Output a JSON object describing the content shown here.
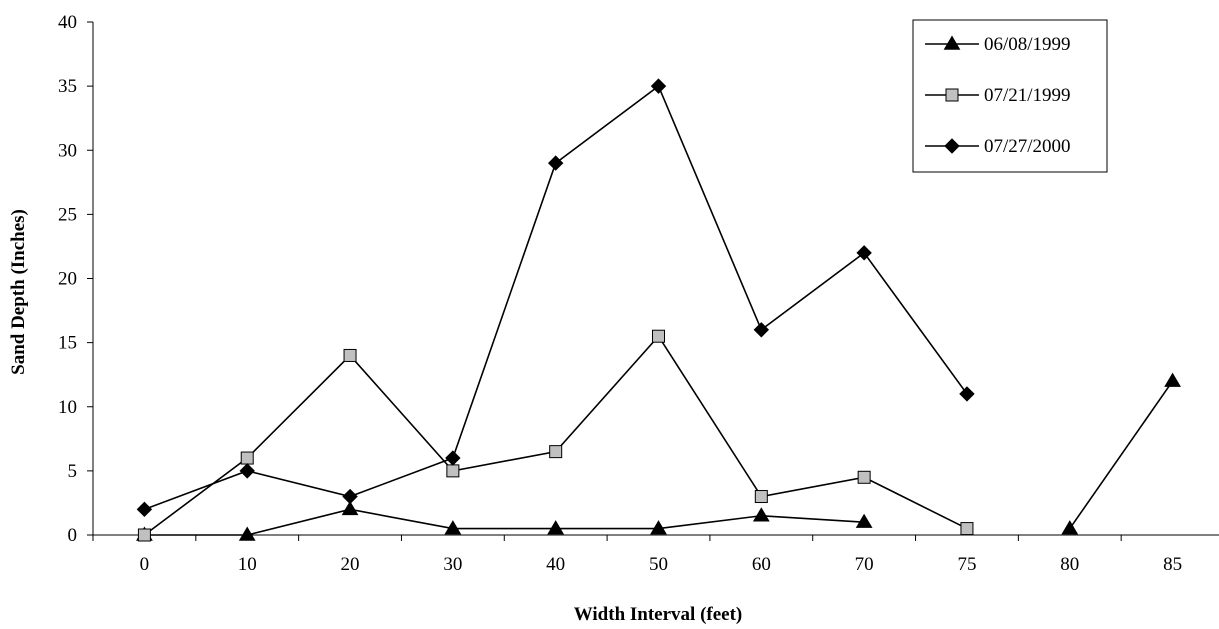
{
  "chart_data": {
    "type": "line",
    "categories": [
      "0",
      "10",
      "20",
      "30",
      "40",
      "50",
      "60",
      "70",
      "75",
      "80",
      "85"
    ],
    "xlabel": "Width Interval (feet)",
    "ylabel": "Sand Depth (Inches)",
    "ylim": [
      0,
      40
    ],
    "yticks": [
      0,
      5,
      10,
      15,
      20,
      25,
      30,
      35,
      40
    ],
    "legend_position": "top-right",
    "grid": false,
    "series": [
      {
        "name": "06/08/1999",
        "marker": "triangle",
        "color": "#000000",
        "values": [
          0,
          0,
          2,
          0.5,
          0.5,
          0.5,
          1.5,
          1,
          null,
          0.5,
          12
        ]
      },
      {
        "name": "07/21/1999",
        "marker": "square",
        "color": "#c0c0c0",
        "values": [
          0,
          6,
          14,
          5,
          6.5,
          15.5,
          3,
          4.5,
          0.5,
          null,
          null
        ]
      },
      {
        "name": "07/27/2000",
        "marker": "diamond",
        "color": "#000000",
        "values": [
          2,
          5,
          3,
          6,
          29,
          35,
          16,
          22,
          11,
          null,
          null
        ]
      }
    ]
  }
}
